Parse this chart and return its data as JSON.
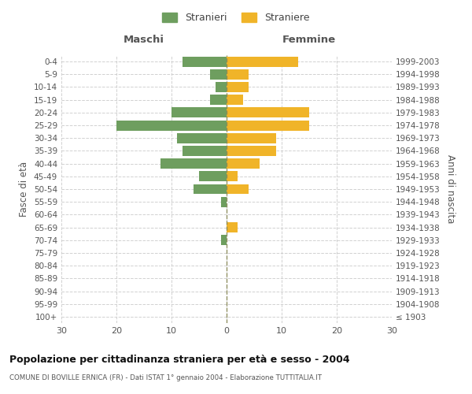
{
  "age_groups": [
    "100+",
    "95-99",
    "90-94",
    "85-89",
    "80-84",
    "75-79",
    "70-74",
    "65-69",
    "60-64",
    "55-59",
    "50-54",
    "45-49",
    "40-44",
    "35-39",
    "30-34",
    "25-29",
    "20-24",
    "15-19",
    "10-14",
    "5-9",
    "0-4"
  ],
  "birth_years": [
    "≤ 1903",
    "1904-1908",
    "1909-1913",
    "1914-1918",
    "1919-1923",
    "1924-1928",
    "1929-1933",
    "1934-1938",
    "1939-1943",
    "1944-1948",
    "1949-1953",
    "1954-1958",
    "1959-1963",
    "1964-1968",
    "1969-1973",
    "1974-1978",
    "1979-1983",
    "1984-1988",
    "1989-1993",
    "1994-1998",
    "1999-2003"
  ],
  "males": [
    0,
    0,
    0,
    0,
    0,
    0,
    1,
    0,
    0,
    1,
    6,
    5,
    12,
    8,
    9,
    20,
    10,
    3,
    2,
    3,
    8
  ],
  "females": [
    0,
    0,
    0,
    0,
    0,
    0,
    0,
    2,
    0,
    0,
    4,
    2,
    6,
    9,
    9,
    15,
    15,
    3,
    4,
    4,
    13
  ],
  "male_color": "#6e9e5f",
  "female_color": "#f0b429",
  "male_label": "Stranieri",
  "female_label": "Straniere",
  "title": "Popolazione per cittadinanza straniera per età e sesso - 2004",
  "subtitle": "COMUNE DI BOVILLE ERNICA (FR) - Dati ISTAT 1° gennaio 2004 - Elaborazione TUTTITALIA.IT",
  "xlabel_left": "Maschi",
  "xlabel_right": "Femmine",
  "ylabel_left": "Fasce di età",
  "ylabel_right": "Anni di nascita",
  "xlim": 30,
  "background_color": "#ffffff",
  "grid_color": "#cccccc",
  "bar_height": 0.8
}
